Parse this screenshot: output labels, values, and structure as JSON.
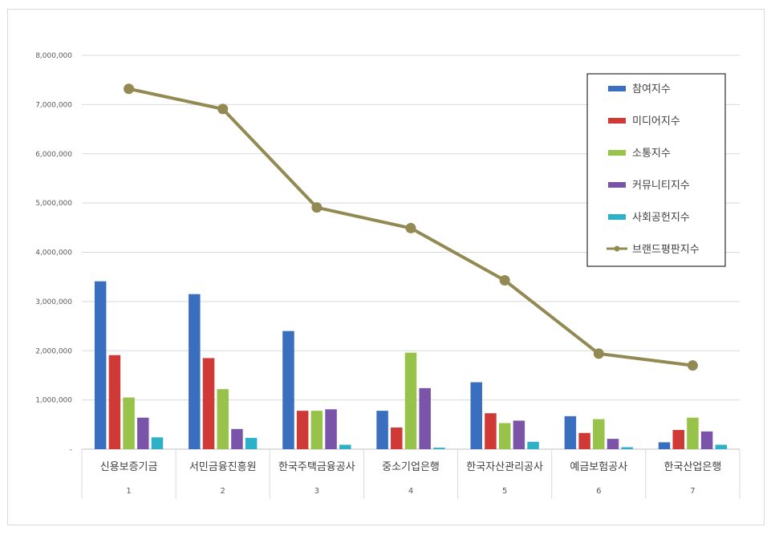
{
  "chart_data": {
    "type": "bar",
    "categories": [
      "신용보증기금",
      "서민금융진흥원",
      "한국주택금융공사",
      "중소기업은행",
      "한국자산관리공사",
      "예금보험공사",
      "한국산업은행"
    ],
    "category_index": [
      "1",
      "2",
      "3",
      "4",
      "5",
      "6",
      "7"
    ],
    "ylim": [
      0,
      8000000
    ],
    "yticks": [
      0,
      1000000,
      2000000,
      3000000,
      4000000,
      5000000,
      6000000,
      7000000,
      8000000
    ],
    "ytick_labels": [
      "-",
      "1,000,000",
      "2,000,000",
      "3,000,000",
      "4,000,000",
      "5,000,000",
      "6,000,000",
      "7,000,000",
      "8,000,000"
    ],
    "grid": true,
    "legend_position": "right",
    "series": [
      {
        "name": "참여지수",
        "kind": "bar",
        "color": "#3a6fbf",
        "values": [
          3410000,
          3150000,
          2400000,
          780000,
          1360000,
          670000,
          140000
        ]
      },
      {
        "name": "미디어지수",
        "kind": "bar",
        "color": "#d03a36",
        "values": [
          1910000,
          1850000,
          780000,
          440000,
          730000,
          330000,
          390000
        ]
      },
      {
        "name": "소통지수",
        "kind": "bar",
        "color": "#98c34a",
        "values": [
          1050000,
          1220000,
          780000,
          1960000,
          530000,
          610000,
          640000
        ]
      },
      {
        "name": "커뮤니티지수",
        "kind": "bar",
        "color": "#7a54a8",
        "values": [
          640000,
          410000,
          810000,
          1240000,
          580000,
          210000,
          360000
        ]
      },
      {
        "name": "사회공헌지수",
        "kind": "bar",
        "color": "#2fb0c9",
        "values": [
          240000,
          230000,
          90000,
          30000,
          150000,
          40000,
          90000
        ]
      },
      {
        "name": "브랜드평판지수",
        "kind": "line",
        "color": "#938953",
        "values": [
          7320000,
          6910000,
          4910000,
          4490000,
          3430000,
          1940000,
          1700000
        ]
      }
    ]
  }
}
